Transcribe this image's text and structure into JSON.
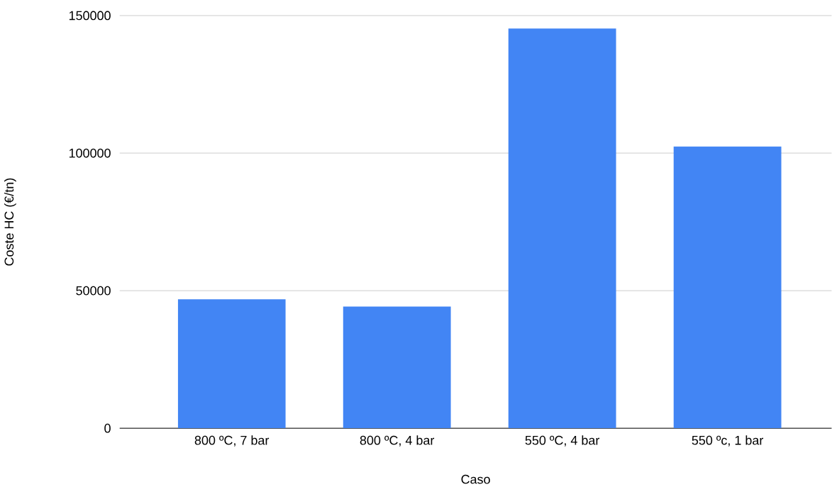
{
  "chart_data": {
    "type": "bar",
    "xlabel": "Caso",
    "ylabel": "Coste HC (€/tn)",
    "categories": [
      "800 ºC, 7 bar",
      "800 ºC, 4 bar",
      "550 ºC, 4 bar",
      "550 ºc, 1 bar"
    ],
    "values": [
      46900,
      44200,
      145300,
      102400
    ],
    "color": "#4285f4",
    "ylim": [
      0,
      150000
    ],
    "yticks": [
      0,
      50000,
      100000,
      150000
    ],
    "grid": "y"
  }
}
